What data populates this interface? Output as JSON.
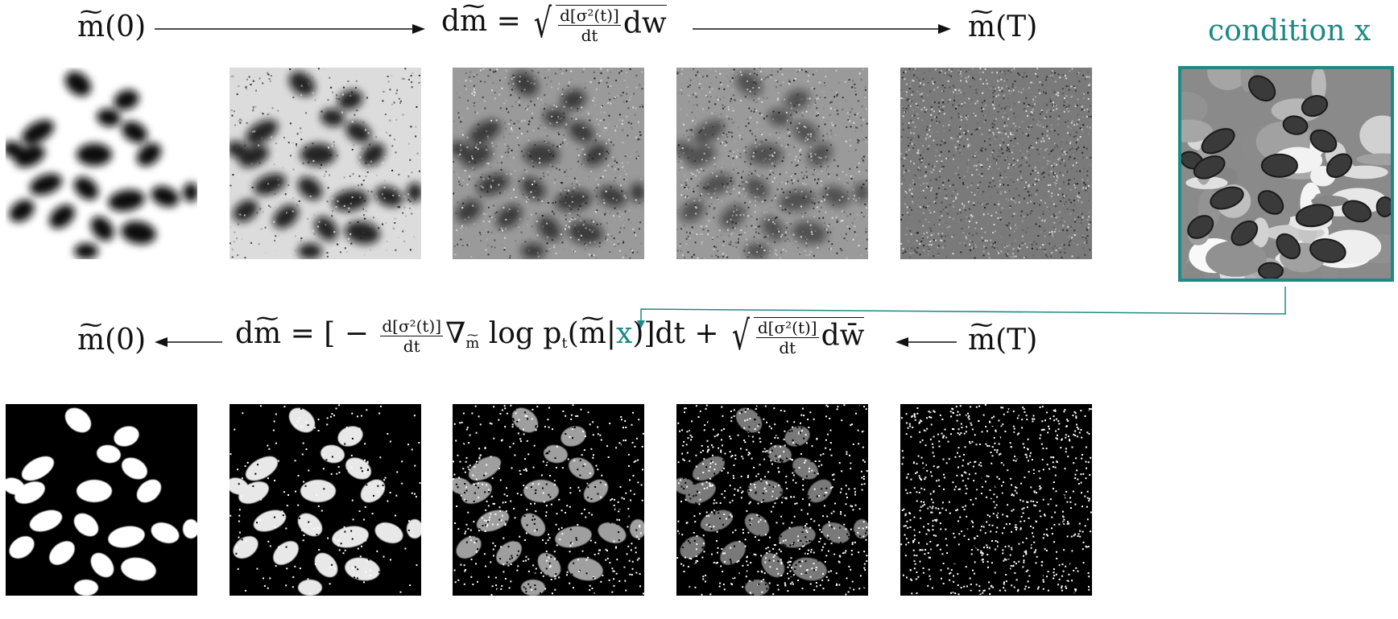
{
  "forward": {
    "start_label": "m(0)",
    "end_label": "m(T)",
    "equation_lhs": "dm =",
    "equation_frac_num": "d[σ²(t)]",
    "equation_frac_den": "dt",
    "equation_tail": "dw"
  },
  "condition": {
    "label": "condition x",
    "color": "#1c8a84"
  },
  "reverse": {
    "start_label": "m(T)",
    "end_label": "m(0)",
    "equation_lhs": "dm = [ −",
    "frac1_num": "d[σ²(t)]",
    "frac1_den": "dt",
    "nabla": "∇",
    "nabla_sub": "m",
    "log_text": "log p",
    "log_sub": "t",
    "log_arg_open": "(m|",
    "log_arg_x": "x",
    "log_arg_close": ")]dt +",
    "frac2_num": "d[σ²(t)]",
    "frac2_den": "dt",
    "tail": "dw̄"
  },
  "soft_panels": [
    {
      "name": "soft-mask-t0",
      "noise": 0.0
    },
    {
      "name": "soft-mask-t1",
      "noise": 0.15
    },
    {
      "name": "soft-mask-t2",
      "noise": 0.45
    },
    {
      "name": "soft-mask-t3",
      "noise": 0.65
    },
    {
      "name": "soft-mask-tT",
      "noise": 1.0
    }
  ],
  "binary_panels": [
    {
      "name": "binary-mask-t0",
      "noise": 0.0
    },
    {
      "name": "binary-mask-t1",
      "noise": 0.12
    },
    {
      "name": "binary-mask-t2",
      "noise": 0.5
    },
    {
      "name": "binary-mask-t3",
      "noise": 0.7
    },
    {
      "name": "binary-mask-tT",
      "noise": 1.0
    }
  ]
}
